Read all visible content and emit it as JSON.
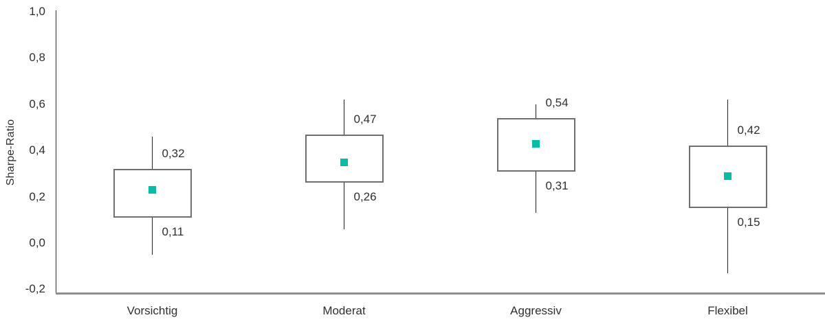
{
  "chart_data": {
    "type": "boxplot",
    "title": "",
    "xlabel": "",
    "ylabel": "Sharpe-Ratio",
    "ylim": [
      -0.2,
      1.0
    ],
    "grid": false,
    "legend": "none",
    "decimal_separator": ",",
    "yticks": [
      {
        "value": 1.0,
        "label": "1,0"
      },
      {
        "value": 0.8,
        "label": "0,8"
      },
      {
        "value": 0.6,
        "label": "0,6"
      },
      {
        "value": 0.4,
        "label": "0,4"
      },
      {
        "value": 0.2,
        "label": "0,2"
      },
      {
        "value": 0.0,
        "label": "0,0"
      },
      {
        "value": -0.2,
        "label": "-0,2"
      }
    ],
    "categories": [
      "Vorsichtig",
      "Moderat",
      "Aggressiv",
      "Flexibel"
    ],
    "series": [
      {
        "category": "Vorsichtig",
        "box_top": 0.32,
        "box_bottom": 0.11,
        "box_top_label": "0,32",
        "box_bottom_label": "0,11",
        "whisker_high": 0.46,
        "whisker_low": -0.05,
        "mean": 0.23
      },
      {
        "category": "Moderat",
        "box_top": 0.47,
        "box_bottom": 0.26,
        "box_top_label": "0,47",
        "box_bottom_label": "0,26",
        "whisker_high": 0.62,
        "whisker_low": 0.06,
        "mean": 0.35
      },
      {
        "category": "Aggressiv",
        "box_top": 0.54,
        "box_bottom": 0.31,
        "box_top_label": "0,54",
        "box_bottom_label": "0,31",
        "whisker_high": 0.6,
        "whisker_low": 0.13,
        "mean": 0.43
      },
      {
        "category": "Flexibel",
        "box_top": 0.42,
        "box_bottom": 0.15,
        "box_top_label": "0,42",
        "box_bottom_label": "0,15",
        "whisker_high": 0.62,
        "whisker_low": -0.13,
        "mean": 0.29
      }
    ],
    "colors": {
      "marker": "#00BFA5",
      "box_border": "#6e6e6e",
      "box_fill": "#ffffff",
      "whisker": "#1f1f1f",
      "axis_left": "#2e2e2e",
      "axis_bottom": "#8d8d8d",
      "text": "#2f2f2f",
      "background": "#ffffff"
    }
  }
}
